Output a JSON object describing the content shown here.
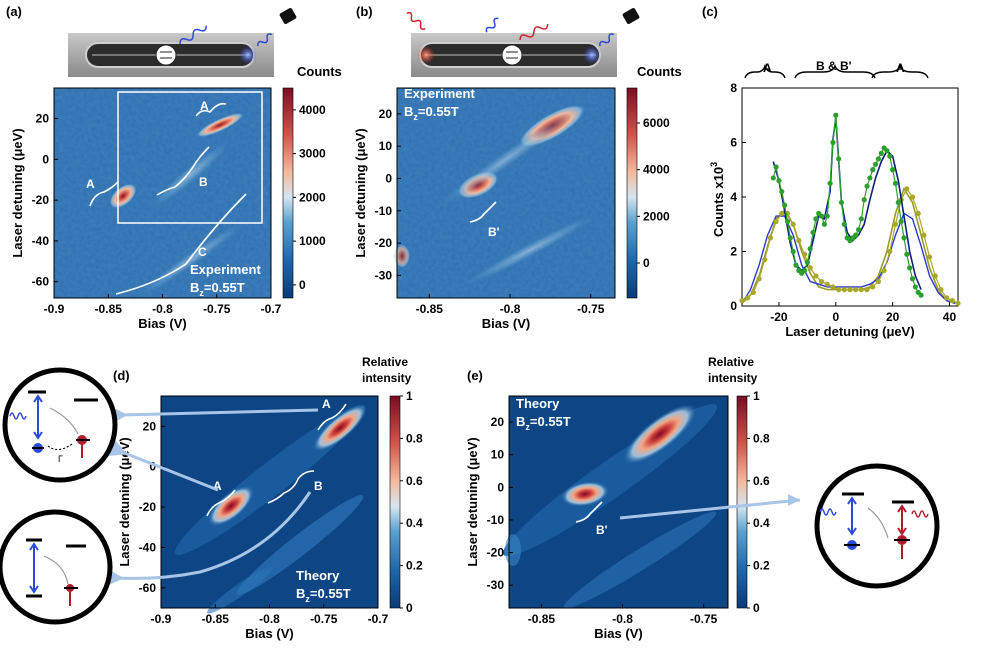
{
  "figure": {
    "panel_labels": [
      "(a)",
      "(b)",
      "(c)",
      "(d)",
      "(e)"
    ],
    "experiment_label": "Experiment",
    "theory_label": "Theory",
    "field_label": "B",
    "field_sub": "z",
    "field_value": "=0.55T",
    "counts_label": "Counts",
    "relative_intensity": [
      "Relative",
      "intensity"
    ],
    "ylabel_detuning": "Laser detuning (μeV)",
    "xlabel_bias": "Bias (V)"
  },
  "annotations": {
    "A": "A",
    "B": "B",
    "B_prime": "B'",
    "C": "C",
    "B_and_Bp": "B & B'",
    "gamma": "Γ"
  },
  "chart_data": [
    {
      "panel": "(a)",
      "type": "heatmap",
      "xlabel": "Bias (V)",
      "ylabel": "Laser detuning (μeV)",
      "xlim": [
        -0.9,
        -0.7
      ],
      "ylim": [
        -68,
        35
      ],
      "xticks": [
        "-0.9",
        "-0.85",
        "-0.8",
        "-0.75",
        "-0.7"
      ],
      "yticks": [
        "20",
        "0",
        "-20",
        "-40",
        "-60"
      ],
      "colorbar": {
        "label": "Counts",
        "ticks": [
          "4000",
          "3000",
          "2000",
          "1000",
          "0"
        ],
        "range": [
          -300,
          4500
        ]
      },
      "annotations": [
        "A",
        "A",
        "B",
        "C",
        "Experiment",
        "Bz=0.55T"
      ]
    },
    {
      "panel": "(b)",
      "type": "heatmap",
      "xlabel": "Bias (V)",
      "ylabel": "Laser detuning (μeV)",
      "xlim": [
        -0.87,
        -0.735
      ],
      "ylim": [
        -37,
        28
      ],
      "xticks": [
        "-0.85",
        "-0.8",
        "-0.75"
      ],
      "yticks": [
        "20",
        "10",
        "0",
        "-10",
        "-20",
        "-30"
      ],
      "colorbar": {
        "label": "Counts",
        "ticks": [
          "6000",
          "4000",
          "2000",
          "0"
        ],
        "range": [
          -1500,
          7500
        ]
      },
      "annotations": [
        "B'",
        "Experiment",
        "Bz=0.55T"
      ]
    },
    {
      "panel": "(c)",
      "type": "line",
      "xlabel": "Laser detuning (μeV)",
      "ylabel": "Counts x10^3",
      "ylabel_parts": [
        "Counts x10",
        "3"
      ],
      "xlim": [
        -33,
        43
      ],
      "ylim": [
        0,
        8
      ],
      "xticks": [
        "-20",
        "0",
        "20",
        "40"
      ],
      "yticks": [
        "0",
        "2",
        "4",
        "6",
        "8"
      ],
      "brackets": [
        "A",
        "B & B'",
        "A"
      ],
      "series": [
        {
          "name": "green data",
          "x": [
            -22,
            -21,
            -20,
            -19,
            -18,
            -17,
            -16,
            -15,
            -14,
            -13,
            -12,
            -11,
            -10,
            -9,
            -8,
            -7,
            -6,
            -5,
            -4,
            -3,
            -2,
            -1,
            0,
            1,
            2,
            3,
            4,
            5,
            6,
            7,
            8,
            9,
            10,
            11,
            12,
            13,
            14,
            15,
            16,
            17,
            18,
            19,
            20,
            21,
            22,
            23,
            24,
            25,
            26,
            27,
            28,
            29,
            30
          ],
          "y": [
            4.7,
            5.1,
            4.6,
            4.2,
            3.7,
            3.1,
            2.5,
            2.0,
            1.5,
            1.3,
            1.2,
            1.3,
            1.6,
            2.1,
            2.7,
            3.2,
            3.4,
            3.3,
            3.0,
            3.3,
            4.5,
            6.0,
            7.0,
            5.4,
            3.8,
            3.0,
            2.5,
            2.4,
            2.5,
            2.6,
            2.8,
            3.2,
            3.9,
            4.4,
            4.7,
            5.0,
            5.2,
            5.4,
            5.6,
            5.8,
            5.7,
            5.5,
            5.0,
            4.5,
            3.8,
            3.1,
            2.5,
            1.9,
            1.4,
            1.0,
            0.7,
            0.5,
            0.4
          ]
        },
        {
          "name": "olive data",
          "x": [
            -33,
            -31,
            -29,
            -27,
            -25,
            -23,
            -21,
            -19,
            -17,
            -15,
            -13,
            -11,
            -9,
            -7,
            -5,
            -3,
            -1,
            1,
            3,
            5,
            7,
            9,
            11,
            13,
            15,
            17,
            19,
            21,
            23,
            25,
            27,
            29,
            31,
            33,
            35,
            37,
            39,
            41,
            43
          ],
          "y": [
            0.2,
            0.3,
            0.5,
            1.0,
            1.7,
            2.5,
            3.1,
            3.4,
            3.4,
            3.0,
            2.4,
            1.9,
            1.4,
            1.1,
            0.9,
            0.8,
            0.7,
            0.6,
            0.6,
            0.6,
            0.6,
            0.6,
            0.6,
            0.7,
            0.9,
            1.3,
            2.0,
            3.0,
            3.9,
            4.3,
            4.0,
            3.4,
            2.6,
            1.8,
            1.1,
            0.6,
            0.3,
            0.2,
            0.1
          ]
        },
        {
          "name": "olive fit",
          "x": [
            -33,
            -30,
            -27,
            -24,
            -21,
            -18,
            -15,
            -12,
            -9,
            -6,
            -3,
            0,
            3,
            6,
            9,
            12,
            15,
            18,
            21,
            24,
            27,
            30,
            33,
            36,
            39,
            42
          ],
          "y": [
            0.1,
            0.4,
            1.1,
            2.2,
            3.2,
            3.5,
            3.0,
            2.0,
            1.2,
            0.7,
            0.6,
            0.6,
            0.6,
            0.6,
            0.6,
            0.7,
            1.1,
            2.0,
            3.4,
            4.3,
            3.8,
            2.6,
            1.4,
            0.6,
            0.2,
            0.1
          ]
        },
        {
          "name": "dark blue fit (green)",
          "x": [
            -22,
            -20,
            -18,
            -16,
            -14,
            -12,
            -10,
            -8,
            -6,
            -4,
            -2,
            -1,
            0,
            1,
            2,
            4,
            6,
            8,
            10,
            12,
            14,
            16,
            18,
            20,
            22,
            24,
            26,
            28,
            30
          ],
          "y": [
            5.3,
            4.6,
            3.5,
            2.3,
            1.5,
            1.3,
            1.5,
            2.4,
            3.3,
            3.2,
            4.2,
            6.1,
            6.9,
            5.4,
            3.8,
            2.7,
            2.4,
            2.6,
            3.0,
            3.9,
            4.7,
            5.3,
            5.7,
            5.5,
            4.6,
            3.3,
            2.0,
            1.1,
            0.6
          ]
        },
        {
          "name": "blue theory",
          "x": [
            -33,
            -30,
            -27,
            -24,
            -21,
            -18,
            -15,
            -12,
            -9,
            -6,
            -3,
            0,
            3,
            6,
            9,
            12,
            15,
            18,
            21,
            24,
            27,
            30,
            33,
            36,
            39,
            42
          ],
          "y": [
            0.1,
            0.6,
            1.5,
            2.6,
            3.3,
            3.3,
            2.6,
            1.5,
            0.9,
            0.8,
            0.7,
            0.7,
            0.7,
            0.7,
            0.7,
            0.8,
            1.0,
            1.6,
            2.6,
            3.4,
            3.2,
            2.2,
            1.1,
            0.5,
            0.2,
            0.1
          ]
        }
      ]
    },
    {
      "panel": "(d)",
      "type": "heatmap",
      "xlabel": "Bias (V)",
      "ylabel": "Laser detuning (μeV)",
      "xlim": [
        -0.9,
        -0.7
      ],
      "ylim": [
        -70,
        35
      ],
      "xticks": [
        "-0.9",
        "-0.85",
        "-0.8",
        "-0.75",
        "-0.7"
      ],
      "yticks": [
        "20",
        "0",
        "-20",
        "-40",
        "-60"
      ],
      "colorbar": {
        "label": "Relative intensity",
        "ticks": [
          "1",
          "0.8",
          "0.6",
          "0.4",
          "0.2",
          "0"
        ],
        "range": [
          0,
          1
        ]
      },
      "annotations": [
        "A",
        "A",
        "B",
        "Theory",
        "Bz=0.55T"
      ]
    },
    {
      "panel": "(e)",
      "type": "heatmap",
      "xlabel": "Bias (V)",
      "ylabel": "Laser detuning (μeV)",
      "xlim": [
        -0.87,
        -0.735
      ],
      "ylim": [
        -37,
        28
      ],
      "xticks": [
        "-0.85",
        "-0.8",
        "-0.75"
      ],
      "yticks": [
        "20",
        "10",
        "0",
        "-10",
        "-20",
        "-30"
      ],
      "colorbar": {
        "label": "Relative intensity",
        "ticks": [
          "1",
          "0.8",
          "0.6",
          "0.4",
          "0.2",
          "0"
        ],
        "range": [
          0,
          1
        ]
      },
      "annotations": [
        "B'",
        "Theory",
        "Bz=0.55T"
      ]
    }
  ]
}
